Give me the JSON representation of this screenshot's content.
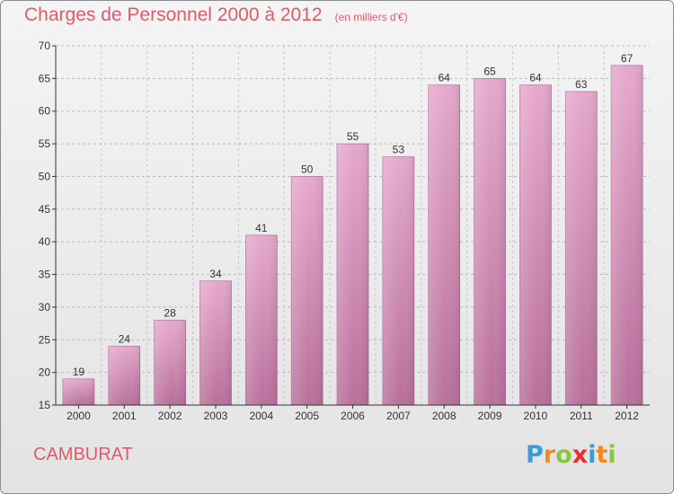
{
  "title": "Charges de Personnel 2000 à 2012",
  "subtitle": "(en milliers d'€)",
  "commune": "CAMBURAT",
  "brand": {
    "letters": [
      "P",
      "r",
      "o",
      "x",
      "i",
      "t",
      "i"
    ],
    "colors": [
      "#3f9ad6",
      "#f08a1e",
      "#8bc540",
      "#e8302c",
      "#3f9ad6",
      "#f08a1e",
      "#8bc540"
    ]
  },
  "colors": {
    "title": "#e05a6a",
    "bar_top": "#e6a8cd",
    "bar_bottom": "#b8709b",
    "axis": "#333333"
  },
  "chart_data": {
    "type": "bar",
    "title": "Charges de Personnel 2000 à 2012",
    "subtitle": "(en milliers d'€)",
    "categories": [
      "2000",
      "2001",
      "2002",
      "2003",
      "2004",
      "2005",
      "2006",
      "2007",
      "2008",
      "2009",
      "2010",
      "2011",
      "2012"
    ],
    "values": [
      19,
      24,
      28,
      34,
      41,
      50,
      55,
      53,
      64,
      65,
      64,
      63,
      67
    ],
    "xlabel": "",
    "ylabel": "",
    "ylim": [
      15,
      70
    ],
    "yticks": [
      15,
      20,
      25,
      30,
      35,
      40,
      45,
      50,
      55,
      60,
      65,
      70
    ],
    "grid": true,
    "data_labels": true
  }
}
